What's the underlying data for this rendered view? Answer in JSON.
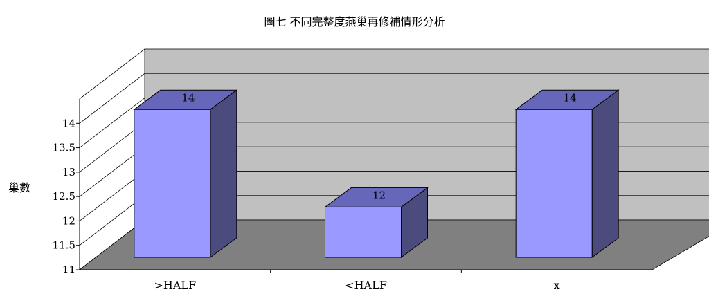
{
  "chart_data": {
    "type": "bar",
    "title": "圖七 不同完整度燕巢再修補情形分析",
    "xlabel": "",
    "ylabel": "巢數",
    "categories": [
      ">HALF",
      "<HALF",
      "x"
    ],
    "values": [
      14,
      12,
      14
    ],
    "data_labels": [
      "14",
      "12",
      "14"
    ],
    "y_ticks": [
      "11",
      "11.5",
      "12",
      "12.5",
      "13",
      "13.5",
      "14"
    ],
    "ylim": [
      11,
      14.5
    ],
    "grid": true,
    "legend": "none",
    "three_d": true,
    "colors": {
      "bar_front": "#9999ff",
      "bar_top": "#6666bb",
      "bar_side": "#4b4b7e",
      "back_wall": "#c0c0c0",
      "floor": "#808080",
      "side_wall": "#ffffff"
    }
  }
}
